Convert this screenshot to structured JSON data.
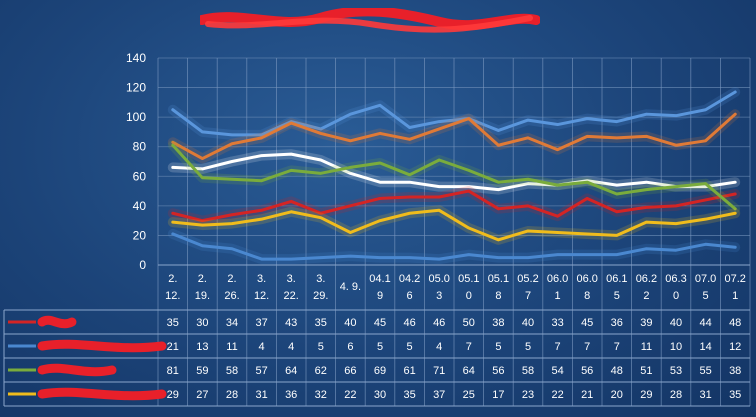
{
  "chart_data": {
    "type": "line",
    "title": "",
    "xlabel": "",
    "ylabel": "",
    "ylim": [
      0,
      140
    ],
    "yticks": [
      0,
      20,
      40,
      60,
      80,
      100,
      120,
      140
    ],
    "grid": true,
    "legend": "data-table",
    "categories": [
      [
        "2.",
        "12."
      ],
      [
        "2.",
        "19."
      ],
      [
        "2.",
        "26."
      ],
      [
        "3.",
        "12."
      ],
      [
        "3.",
        "22."
      ],
      [
        "3.",
        "29."
      ],
      [
        "4. 9."
      ],
      [
        "04.1",
        "9"
      ],
      [
        "04.2",
        "6"
      ],
      [
        "05.0",
        "3"
      ],
      [
        "05.1",
        "0"
      ],
      [
        "05.1",
        "8"
      ],
      [
        "05.2",
        "7"
      ],
      [
        "06.0",
        "1"
      ],
      [
        "06.0",
        "8"
      ],
      [
        "06.1",
        "5"
      ],
      [
        "06.2",
        "2"
      ],
      [
        "06.3",
        "0"
      ],
      [
        "07.0",
        "5"
      ],
      [
        "07.2",
        "1"
      ]
    ],
    "series": [
      {
        "key": "red",
        "color": "#d42424",
        "values": [
          35,
          30,
          34,
          37,
          43,
          35,
          40,
          45,
          46,
          46,
          50,
          38,
          40,
          33,
          45,
          36,
          39,
          40,
          44,
          48
        ]
      },
      {
        "key": "blue",
        "color": "#4a88d0",
        "values": [
          21,
          13,
          11,
          4,
          4,
          5,
          6,
          5,
          5,
          4,
          7,
          5,
          5,
          7,
          7,
          7,
          11,
          10,
          14,
          12
        ]
      },
      {
        "key": "green",
        "color": "#7aac3c",
        "values": [
          81,
          59,
          58,
          57,
          64,
          62,
          66,
          69,
          61,
          71,
          64,
          56,
          58,
          54,
          56,
          48,
          51,
          53,
          55,
          38
        ]
      },
      {
        "key": "yellow",
        "color": "#f0bc1c",
        "values": [
          29,
          27,
          28,
          31,
          36,
          32,
          22,
          30,
          35,
          37,
          25,
          17,
          23,
          22,
          21,
          20,
          29,
          28,
          31,
          35
        ]
      }
    ],
    "unlabeled_lines": [
      {
        "key": "top-blue",
        "color": "#5a96dc",
        "values": [
          105,
          90,
          88,
          88,
          97,
          92,
          102,
          108,
          93,
          97,
          99,
          91,
          98,
          95,
          99,
          97,
          102,
          101,
          105,
          117
        ]
      },
      {
        "key": "orange",
        "color": "#e07a36",
        "values": [
          83,
          72,
          82,
          86,
          96,
          89,
          84,
          89,
          85,
          92,
          99,
          81,
          86,
          78,
          87,
          86,
          87,
          81,
          84,
          102
        ]
      },
      {
        "key": "white",
        "color": "#ffffff",
        "values": [
          66,
          65,
          70,
          74,
          75,
          71,
          62,
          56,
          56,
          53,
          53,
          51,
          55,
          54,
          57,
          54,
          56,
          53,
          53,
          56
        ]
      }
    ]
  }
}
